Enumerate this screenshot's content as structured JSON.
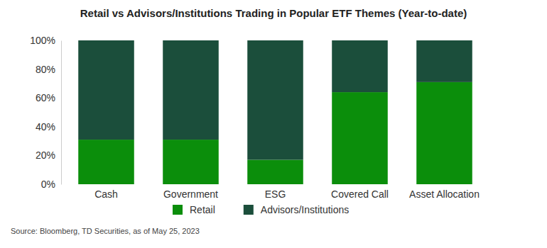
{
  "chart_data": {
    "type": "bar",
    "stacked": true,
    "title": "Retail vs Advisors/Institutions Trading in Popular ETF Themes (Year-to-date)",
    "source": "Source: Bloomberg, TD Securities, as of May 25, 2023",
    "categories": [
      "Cash",
      "Government",
      "ESG",
      "Covered Call",
      "Asset Allocation"
    ],
    "series": [
      {
        "name": "Retail",
        "color": "#0b8e0b",
        "values": [
          31,
          31,
          17,
          64,
          71
        ]
      },
      {
        "name": "Advisors/Institutions",
        "color": "#1b4e3b",
        "values": [
          69,
          69,
          83,
          36,
          29
        ]
      }
    ],
    "ylim": [
      0,
      100
    ],
    "yticks": [
      {
        "value": 0,
        "label": "0%"
      },
      {
        "value": 20,
        "label": "20%"
      },
      {
        "value": 40,
        "label": "40%"
      },
      {
        "value": 60,
        "label": "60%"
      },
      {
        "value": 80,
        "label": "80%"
      },
      {
        "value": 100,
        "label": "100%"
      }
    ],
    "grid": false,
    "legend": "bottom"
  }
}
